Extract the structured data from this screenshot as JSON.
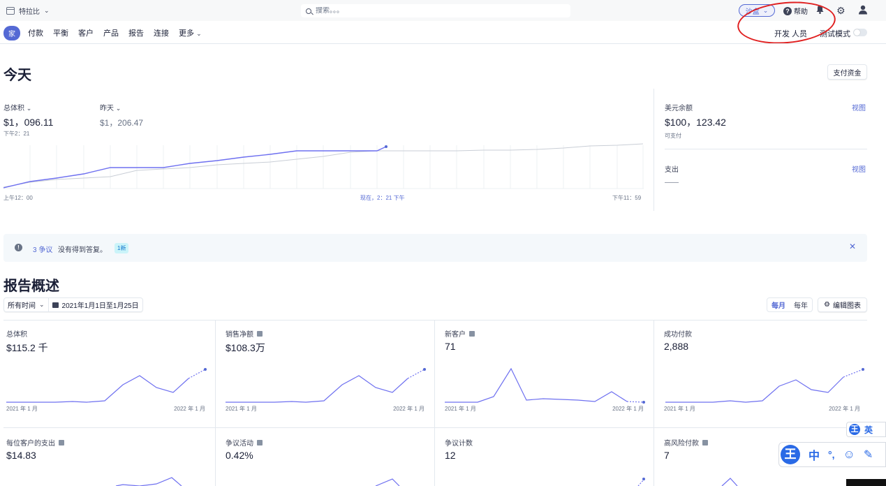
{
  "topbar": {
    "account_name": "特拉比",
    "search_placeholder": "搜索。。。",
    "mode_label": "沙盒",
    "help_label": "帮助"
  },
  "nav": {
    "items": [
      "家",
      "付款",
      "平衡",
      "客户",
      "产品",
      "报告",
      "连接",
      "更多"
    ],
    "developer_label": "开发 人员",
    "test_mode_label": "测试模式",
    "test_mode_on": false
  },
  "today": {
    "title": "今天",
    "payout_button": "支付资金",
    "gross": {
      "label": "总体积",
      "value": "$1，096.11",
      "time": "下午2：21"
    },
    "yesterday": {
      "label": "昨天",
      "value": "$1，206.47"
    },
    "axis": {
      "start": "上午12：00",
      "now": "现在，2：21 下午",
      "end": "下午11：59"
    },
    "usd_balance": {
      "label": "美元余额",
      "link": "视图",
      "value": "$100，123.42",
      "sub": "可支付"
    },
    "payouts": {
      "label": "支出",
      "link": "视图",
      "value": "——"
    }
  },
  "alert": {
    "link": "3 争议",
    "text": "没有得到答复。",
    "badge": "1新"
  },
  "reports": {
    "title": "报告概述",
    "range_select": "所有时间",
    "date_range": "2021年1月1日至1月25日",
    "interval_monthly": "每月",
    "interval_yearly": "每年",
    "edit_button": "编辑图表",
    "axis_start": "2021 年 1 月",
    "axis_end": "2022 年 1 月",
    "cards": [
      {
        "title": "总体积",
        "value": "$115.2 千"
      },
      {
        "title": "销售净额",
        "value": "$108.3万"
      },
      {
        "title": "新客户",
        "value": "71"
      },
      {
        "title": "成功付款",
        "value": "2,888"
      },
      {
        "title": "每位客户的支出",
        "value": "$14.83"
      },
      {
        "title": "争议活动",
        "value": "0.42%"
      },
      {
        "title": "争议计数",
        "value": "12"
      },
      {
        "title": "高风险付款",
        "value": "7"
      }
    ]
  },
  "ime": {
    "logo": "王",
    "lang": "英",
    "mode": "中",
    "punct": "°,",
    "emoji": "☺",
    "pen": "✎"
  },
  "colors": {
    "accent": "#5469d4",
    "annotation": "#e02020",
    "compare_line": "#c9ced6"
  }
}
